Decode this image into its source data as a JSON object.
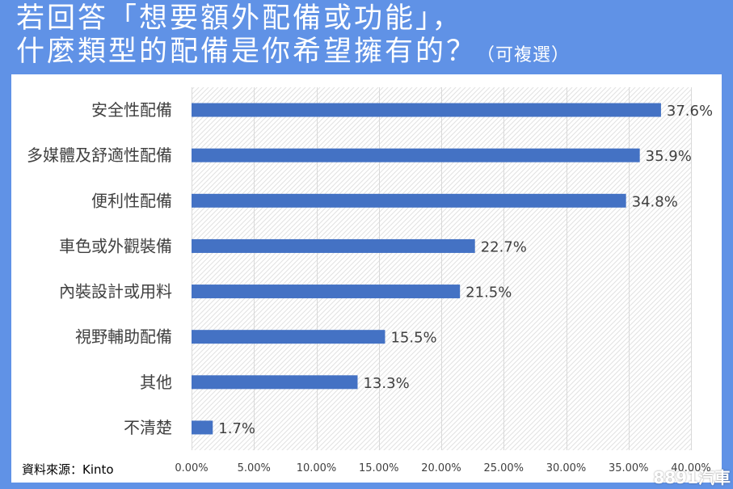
{
  "colors": {
    "header_bg": "#6092e6",
    "bar": "#4472c4",
    "grid": "#d9d9d9",
    "hatch": "#e2e2e2",
    "label_text": "#404040"
  },
  "chart_data": {
    "type": "bar",
    "orientation": "horizontal",
    "title": {
      "line1": "若回答「想要額外配備或功能」，",
      "line2": "什麼類型的配備是你希望擁有的？",
      "note": "（可複選）"
    },
    "categories": [
      "安全性配備",
      "多媒體及舒適性配備",
      "便利性配備",
      "車色或外觀裝備",
      "內裝設計或用料",
      "視野輔助配備",
      "其他",
      "不清楚"
    ],
    "values": [
      37.6,
      35.9,
      34.8,
      22.7,
      21.5,
      15.5,
      13.3,
      1.7
    ],
    "data_labels": [
      "37.6%",
      "35.9%",
      "34.8%",
      "22.7%",
      "21.5%",
      "15.5%",
      "13.3%",
      "1.7%"
    ],
    "xlim": [
      0,
      40
    ],
    "xticks": [
      0,
      5,
      10,
      15,
      20,
      25,
      30,
      35,
      40
    ],
    "xtick_labels": [
      "0.00%",
      "5.00%",
      "10.00%",
      "15.00%",
      "20.00%",
      "25.00%",
      "30.00%",
      "35.00%",
      "40.00%"
    ],
    "grid": {
      "vertical": true,
      "horizontal": false
    },
    "source": "資料來源：Kinto"
  },
  "watermark": "8891汽車"
}
